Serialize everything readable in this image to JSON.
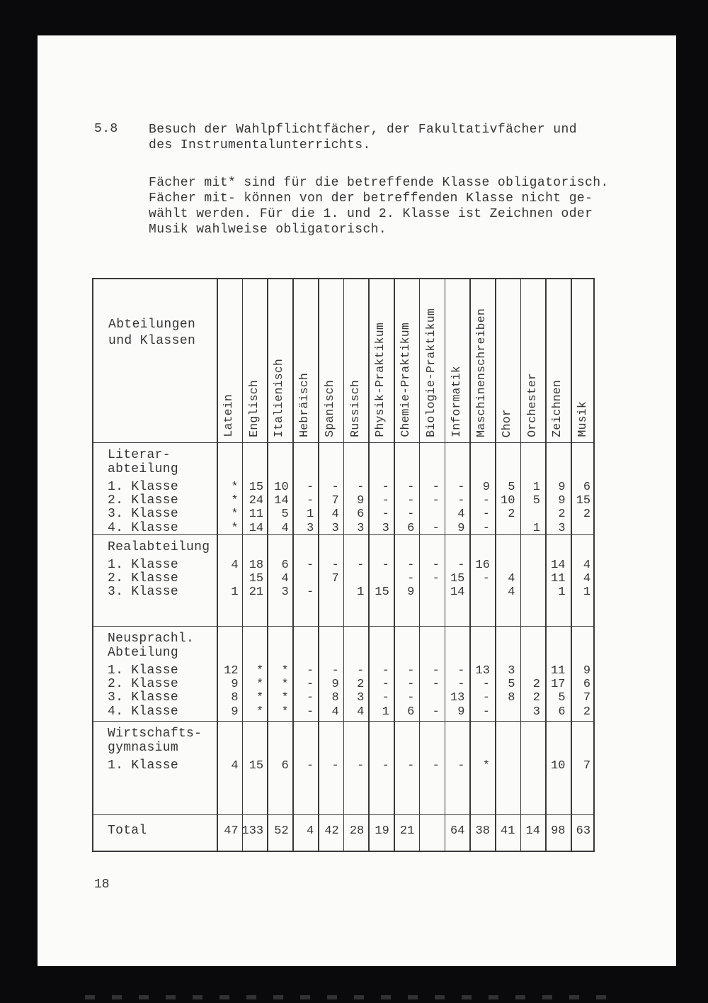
{
  "page": {
    "section_number": "5.8",
    "heading_lines": [
      "Besuch der Wahlpflichtfächer, der Fakultativfächer und",
      "des Instrumentalunterrichts."
    ],
    "note_lines": [
      "Fächer mit* sind für die betreffende Klasse obligatorisch.",
      "Fächer mit- können von der betreffenden Klasse nicht ge-",
      "wählt werden. Für die 1. und 2. Klasse ist Zeichnen oder",
      "Musik wahlweise obligatorisch."
    ],
    "page_number": "18"
  },
  "table": {
    "corner_header_lines": [
      "Abteilungen",
      "und Klassen"
    ],
    "columns": [
      "Latein",
      "Englisch",
      "Italienisch",
      "Hebräisch",
      "Spanisch",
      "Russisch",
      "Physik-Praktikum",
      "Chemie-Praktikum",
      "Biologie-Praktikum",
      "Informatik",
      "Maschinenschreiben",
      "Chor",
      "Orchester",
      "Zeichnen",
      "Musik"
    ],
    "groups": [
      {
        "title_lines": [
          "Literar-",
          "abteilung"
        ],
        "rows": [
          {
            "label": "1. Klasse",
            "values": [
              "*",
              "15",
              "10",
              "-",
              "-",
              "-",
              "-",
              "-",
              "-",
              "-",
              "9",
              "5",
              "1",
              "9",
              "6"
            ]
          },
          {
            "label": "2. Klasse",
            "values": [
              "*",
              "24",
              "14",
              "-",
              "7",
              "9",
              "-",
              "-",
              "-",
              "-",
              "-",
              "10",
              "5",
              "9",
              "15"
            ]
          },
          {
            "label": "3. Klasse",
            "values": [
              "*",
              "11",
              "5",
              "1",
              "4",
              "6",
              "-",
              "-",
              "",
              "4",
              "-",
              "2",
              "",
              "2",
              "2"
            ]
          },
          {
            "label": "4. Klasse",
            "values": [
              "*",
              "14",
              "4",
              "3",
              "3",
              "3",
              "3",
              "6",
              "-",
              "9",
              "-",
              "",
              "1",
              "3",
              ""
            ]
          }
        ]
      },
      {
        "title_lines": [
          "Realabteilung"
        ],
        "rows": [
          {
            "label": "1. Klasse",
            "values": [
              "4",
              "18",
              "6",
              "-",
              "-",
              "-",
              "-",
              "-",
              "-",
              "-",
              "16",
              "",
              "",
              "14",
              "4"
            ]
          },
          {
            "label": "2. Klasse",
            "values": [
              "",
              "15",
              "4",
              "",
              "7",
              "",
              "",
              "-",
              "-",
              "15",
              "-",
              "4",
              "",
              "11",
              "4"
            ]
          },
          {
            "label": "3. Klasse",
            "values": [
              "1",
              "21",
              "3",
              "-",
              "",
              "1",
              "15",
              "9",
              "",
              "14",
              "",
              "4",
              "",
              "1",
              "1"
            ]
          }
        ]
      },
      {
        "title_lines": [
          "Neusprachl.",
          "Abteilung"
        ],
        "rows": [
          {
            "label": "1. Klasse",
            "values": [
              "12",
              "*",
              "*",
              "-",
              "-",
              "-",
              "-",
              "-",
              "-",
              "-",
              "13",
              "3",
              "",
              "11",
              "9"
            ]
          },
          {
            "label": "2. Klasse",
            "values": [
              "9",
              "*",
              "*",
              "-",
              "9",
              "2",
              "-",
              "-",
              "-",
              "-",
              "-",
              "5",
              "2",
              "17",
              "6"
            ]
          },
          {
            "label": "3. Klasse",
            "values": [
              "8",
              "*",
              "*",
              "-",
              "8",
              "3",
              "-",
              "-",
              "",
              "13",
              "-",
              "8",
              "2",
              "5",
              "7"
            ]
          },
          {
            "label": "4. Klasse",
            "values": [
              "9",
              "*",
              "*",
              "-",
              "4",
              "4",
              "1",
              "6",
              "-",
              "9",
              "-",
              "",
              "3",
              "6",
              "2"
            ]
          }
        ]
      },
      {
        "title_lines": [
          "Wirtschafts-",
          "gymnasium"
        ],
        "rows": [
          {
            "label": "1. Klasse",
            "values": [
              "4",
              "15",
              "6",
              "-",
              "-",
              "-",
              "-",
              "-",
              "-",
              "-",
              "*",
              "",
              "",
              "10",
              "7"
            ]
          }
        ]
      }
    ],
    "total_row": {
      "label": "Total",
      "values": [
        "47",
        "133",
        "52",
        "4",
        "42",
        "28",
        "19",
        "21",
        "",
        "64",
        "38",
        "41",
        "14",
        "98",
        "63"
      ]
    }
  },
  "layout": {
    "group_block_heights": [
      130,
      129,
      134,
      132
    ],
    "label_col_width": 174,
    "value_col_width": 35.73
  }
}
